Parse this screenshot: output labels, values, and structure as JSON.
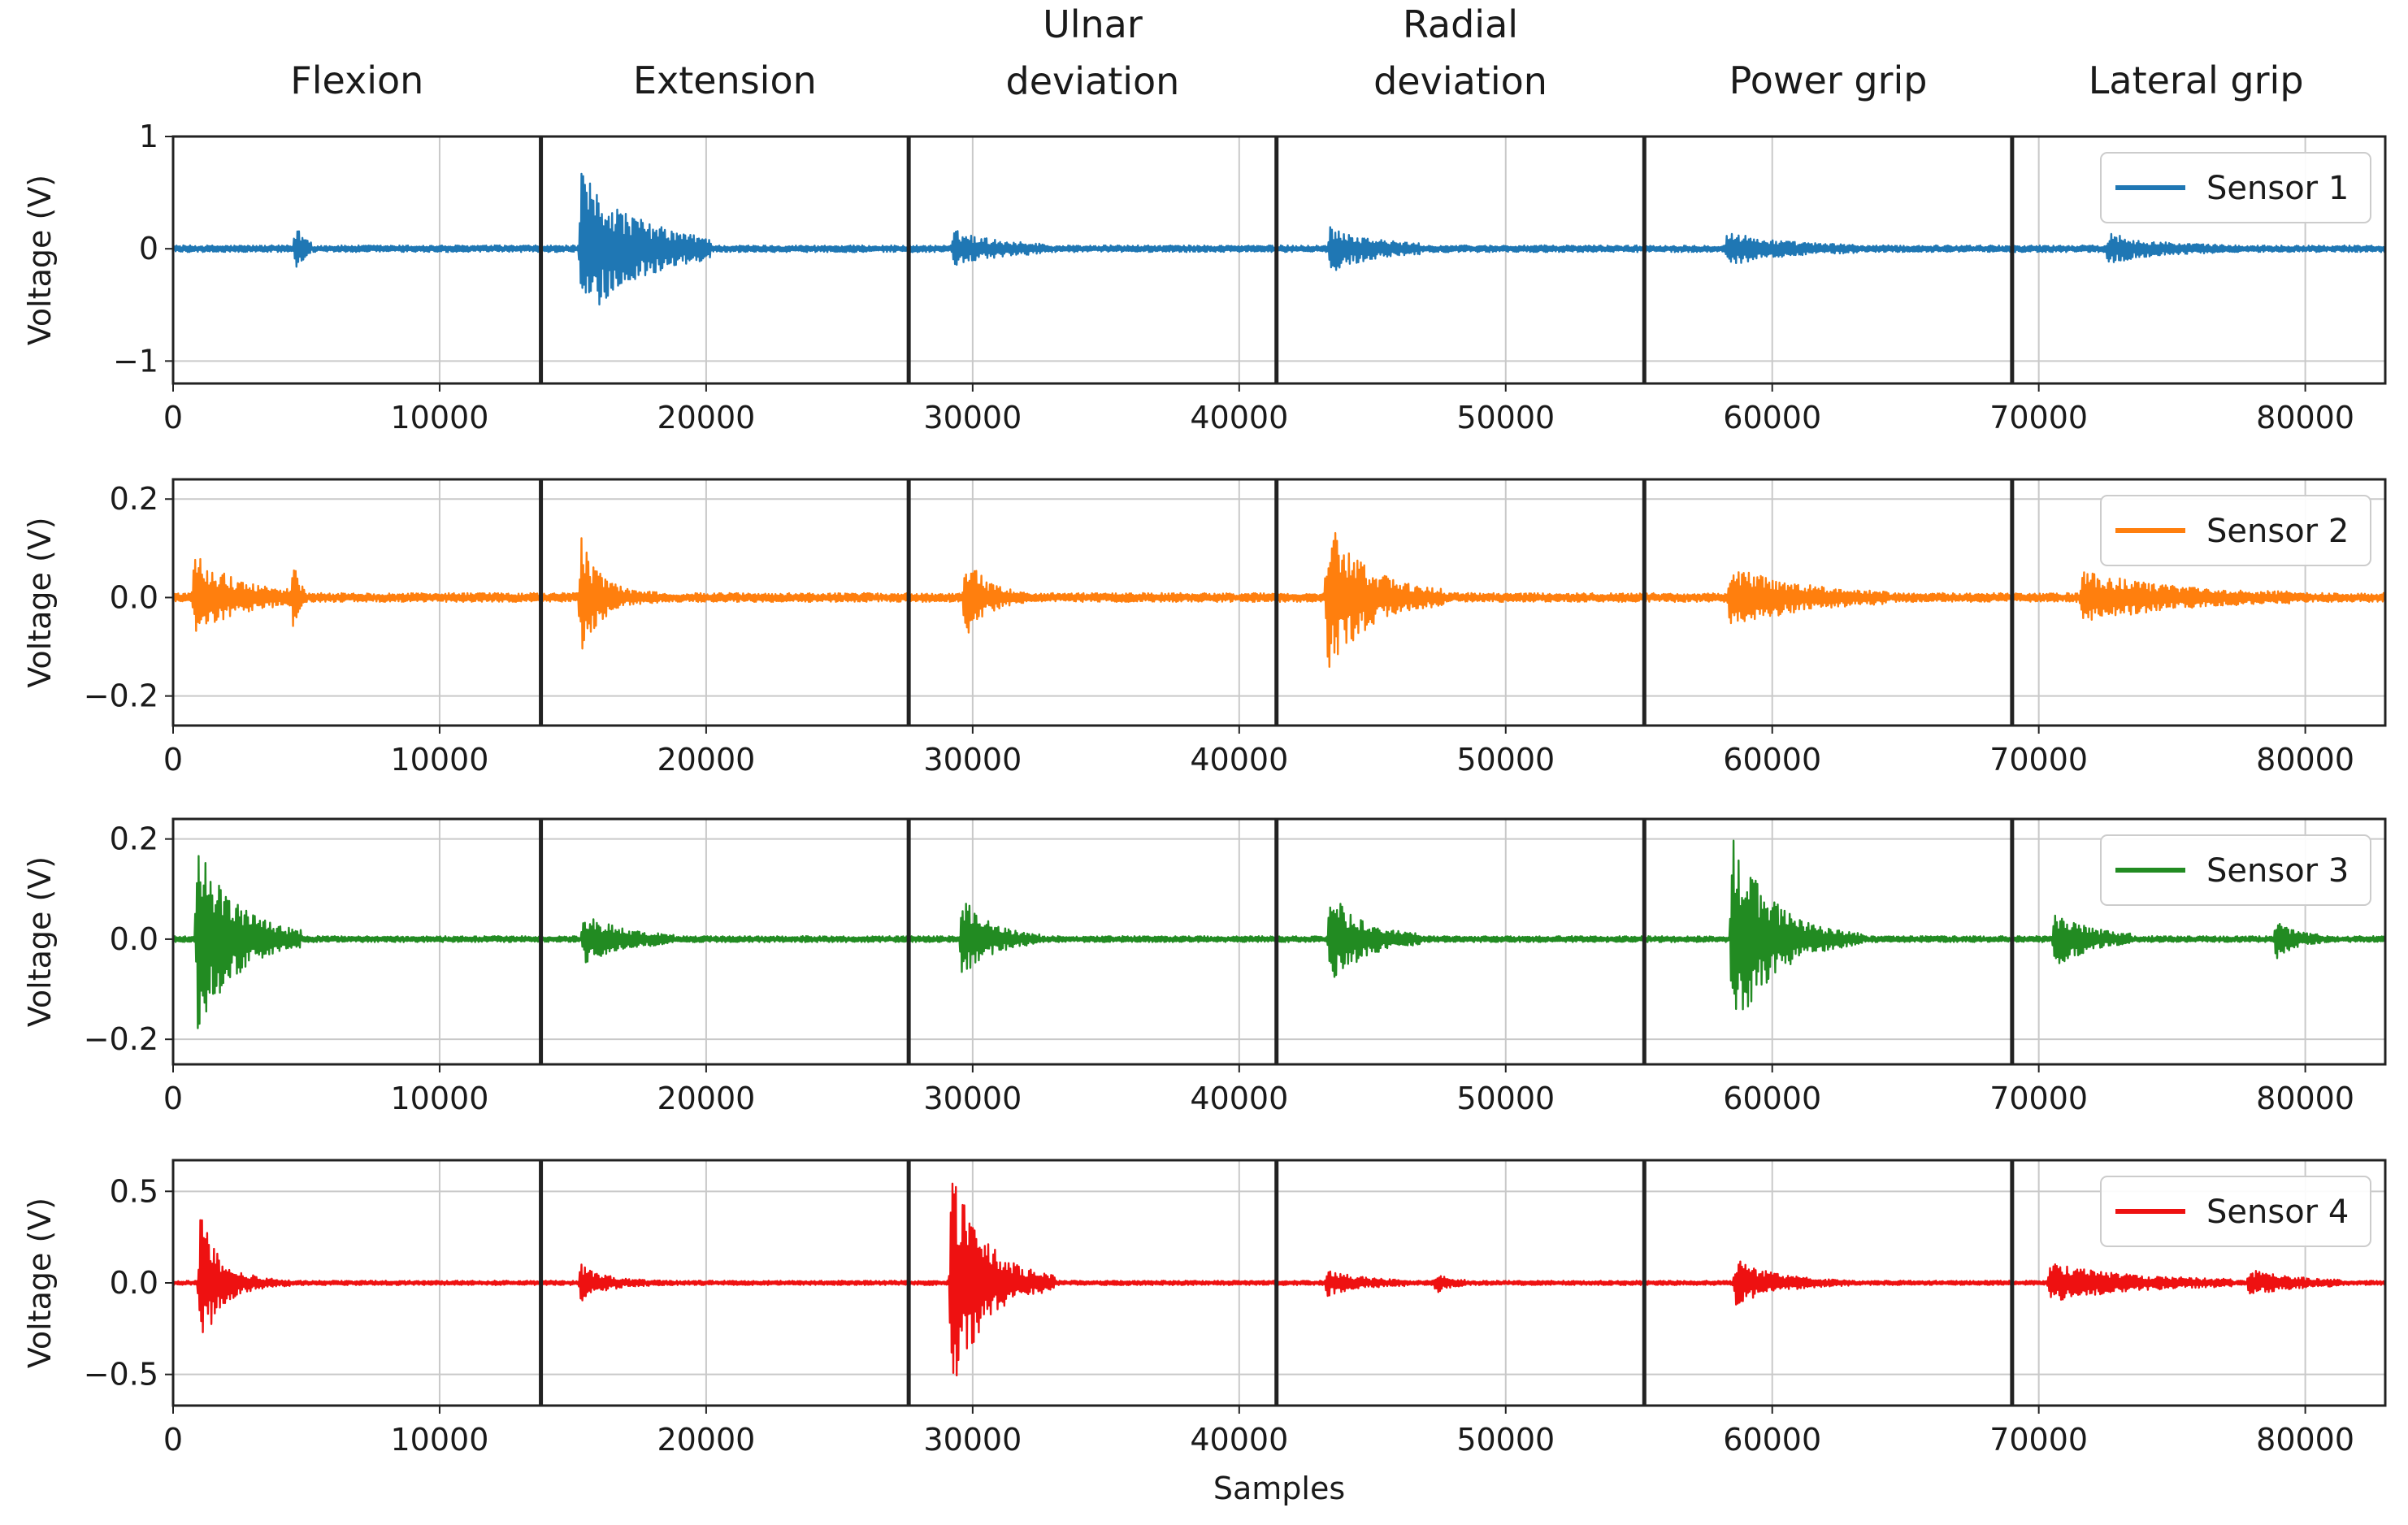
{
  "chart_data": {
    "type": "line",
    "title": "",
    "xlabel": "Samples",
    "xlim": [
      0,
      83000
    ],
    "xticks": [
      0,
      10000,
      20000,
      30000,
      40000,
      50000,
      60000,
      70000,
      80000
    ],
    "xtick_labels": [
      "0",
      "10000",
      "20000",
      "30000",
      "40000",
      "50000",
      "60000",
      "70000",
      "80000"
    ],
    "grid": true,
    "gesture_boundaries": [
      13800,
      27600,
      41400,
      55200,
      69000
    ],
    "gestures": [
      {
        "lines": [
          "Flexion"
        ],
        "center": 6900
      },
      {
        "lines": [
          "Extension"
        ],
        "center": 20700
      },
      {
        "lines": [
          "Ulnar",
          "deviation"
        ],
        "center": 34500
      },
      {
        "lines": [
          "Radial",
          "deviation"
        ],
        "center": 48300
      },
      {
        "lines": [
          "Power grip"
        ],
        "center": 62100
      },
      {
        "lines": [
          "Lateral grip"
        ],
        "center": 75900
      }
    ],
    "panels": [
      {
        "series_name": "Sensor 1",
        "color": "#1f77b4",
        "ylabel": "Voltage (V)",
        "ylim": [
          -1.2,
          1.0
        ],
        "yticks": [
          1,
          0,
          -1
        ],
        "ytick_labels": [
          "1",
          "0",
          "−1"
        ],
        "baseline_noise": 0.03,
        "bursts": [
          {
            "start": 4500,
            "amp": 0.25,
            "decay": 400,
            "len": 700
          },
          {
            "start": 15200,
            "amp": 0.68,
            "decay": 2200,
            "len": 5000
          },
          {
            "start": 29200,
            "amp": 0.15,
            "decay": 1600,
            "len": 3500
          },
          {
            "start": 43300,
            "amp": 0.2,
            "decay": 1500,
            "len": 3500
          },
          {
            "start": 58200,
            "amp": 0.14,
            "decay": 1800,
            "len": 5000
          },
          {
            "start": 72500,
            "amp": 0.13,
            "decay": 1500,
            "len": 4500
          }
        ]
      },
      {
        "series_name": "Sensor 2",
        "color": "#ff7f0e",
        "ylabel": "Voltage (V)",
        "ylim": [
          -0.26,
          0.24
        ],
        "yticks": [
          0.2,
          0.0,
          -0.2
        ],
        "ytick_labels": [
          "0.2",
          "0.0",
          "−0.2"
        ],
        "baseline_noise": 0.009,
        "bursts": [
          {
            "start": 700,
            "amp": 0.09,
            "decay": 1500,
            "len": 4000
          },
          {
            "start": 4400,
            "amp": 0.08,
            "decay": 300,
            "len": 600
          },
          {
            "start": 15200,
            "amp": 0.14,
            "decay": 700,
            "len": 3000
          },
          {
            "start": 29600,
            "amp": 0.1,
            "decay": 700,
            "len": 2500
          },
          {
            "start": 43200,
            "amp": 0.16,
            "decay": 1500,
            "len": 4500
          },
          {
            "start": 58300,
            "amp": 0.06,
            "decay": 2500,
            "len": 6000
          },
          {
            "start": 71500,
            "amp": 0.05,
            "decay": 3000,
            "len": 8000
          }
        ]
      },
      {
        "series_name": "Sensor 3",
        "color": "#228b22",
        "ylabel": "Voltage (V)",
        "ylim": [
          -0.25,
          0.24
        ],
        "yticks": [
          0.2,
          0.0,
          -0.2
        ],
        "ytick_labels": [
          "0.2",
          "0.0",
          "−0.2"
        ],
        "baseline_noise": 0.006,
        "bursts": [
          {
            "start": 800,
            "amp": 0.21,
            "decay": 1400,
            "len": 4000
          },
          {
            "start": 15300,
            "amp": 0.05,
            "decay": 1400,
            "len": 3500
          },
          {
            "start": 29500,
            "amp": 0.09,
            "decay": 1000,
            "len": 3000
          },
          {
            "start": 43300,
            "amp": 0.1,
            "decay": 1200,
            "len": 3500
          },
          {
            "start": 58400,
            "amp": 0.23,
            "decay": 1400,
            "len": 5000
          },
          {
            "start": 70500,
            "amp": 0.06,
            "decay": 1200,
            "len": 3000
          },
          {
            "start": 78800,
            "amp": 0.04,
            "decay": 700,
            "len": 1800
          }
        ]
      },
      {
        "series_name": "Sensor 4",
        "color": "#ee1111",
        "ylabel": "Voltage (V)",
        "ylim": [
          -0.67,
          0.67
        ],
        "yticks": [
          0.5,
          0.0,
          -0.5
        ],
        "ytick_labels": [
          "0.5",
          "0.0",
          "−0.5"
        ],
        "baseline_noise": 0.012,
        "bursts": [
          {
            "start": 900,
            "amp": 0.42,
            "decay": 800,
            "len": 3500
          },
          {
            "start": 15200,
            "amp": 0.12,
            "decay": 800,
            "len": 3500
          },
          {
            "start": 29100,
            "amp": 0.65,
            "decay": 1300,
            "len": 4000
          },
          {
            "start": 43200,
            "amp": 0.07,
            "decay": 1200,
            "len": 3000
          },
          {
            "start": 47300,
            "amp": 0.06,
            "decay": 500,
            "len": 1200
          },
          {
            "start": 58500,
            "amp": 0.13,
            "decay": 1400,
            "len": 4500
          },
          {
            "start": 70300,
            "amp": 0.1,
            "decay": 3000,
            "len": 7000
          },
          {
            "start": 77800,
            "amp": 0.07,
            "decay": 1500,
            "len": 3500
          }
        ]
      }
    ]
  }
}
